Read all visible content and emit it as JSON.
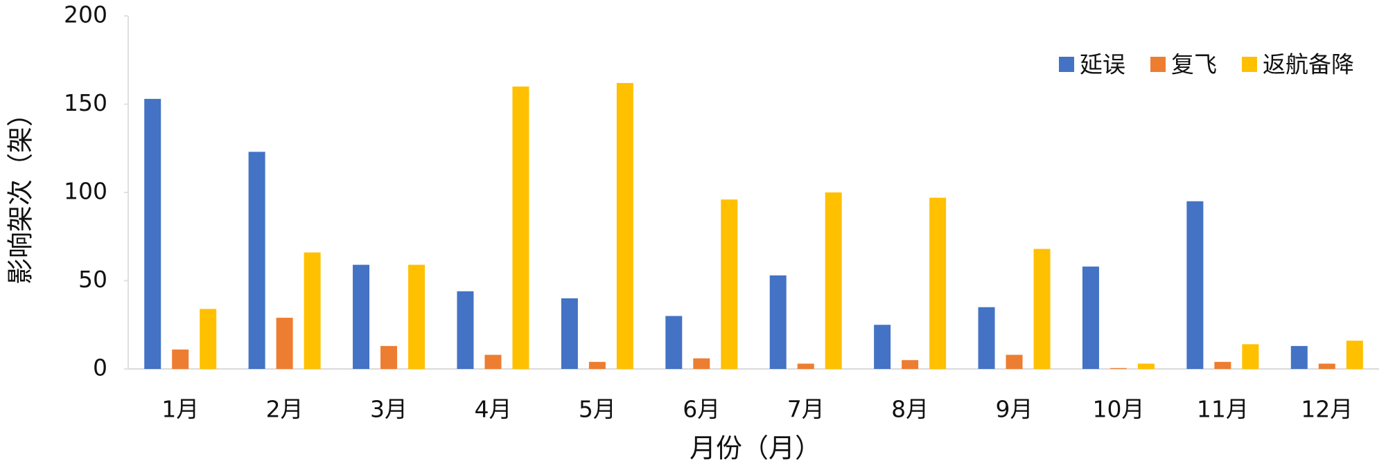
{
  "chart_data": {
    "type": "bar",
    "x_label": "月份（月）",
    "y_label": "影响架次（架）",
    "categories": [
      "1月",
      "2月",
      "3月",
      "4月",
      "5月",
      "6月",
      "7月",
      "8月",
      "9月",
      "10月",
      "11月",
      "12月"
    ],
    "series": [
      {
        "name": "延误",
        "color": "#4472c4",
        "values": [
          153,
          123,
          59,
          44,
          40,
          30,
          53,
          25,
          35,
          58,
          95,
          13
        ]
      },
      {
        "name": "复飞",
        "color": "#ed7d31",
        "values": [
          11,
          29,
          13,
          8,
          4,
          6,
          3,
          5,
          8,
          0.5,
          4,
          3
        ]
      },
      {
        "name": "返航备降",
        "color": "#ffc000",
        "values": [
          34,
          66,
          59,
          160,
          162,
          96,
          100,
          97,
          68,
          3,
          14,
          16
        ]
      }
    ],
    "ylim": [
      0,
      200
    ],
    "yticks": [
      0,
      50,
      100,
      150,
      200
    ],
    "grid": false,
    "legend": "top-right"
  }
}
